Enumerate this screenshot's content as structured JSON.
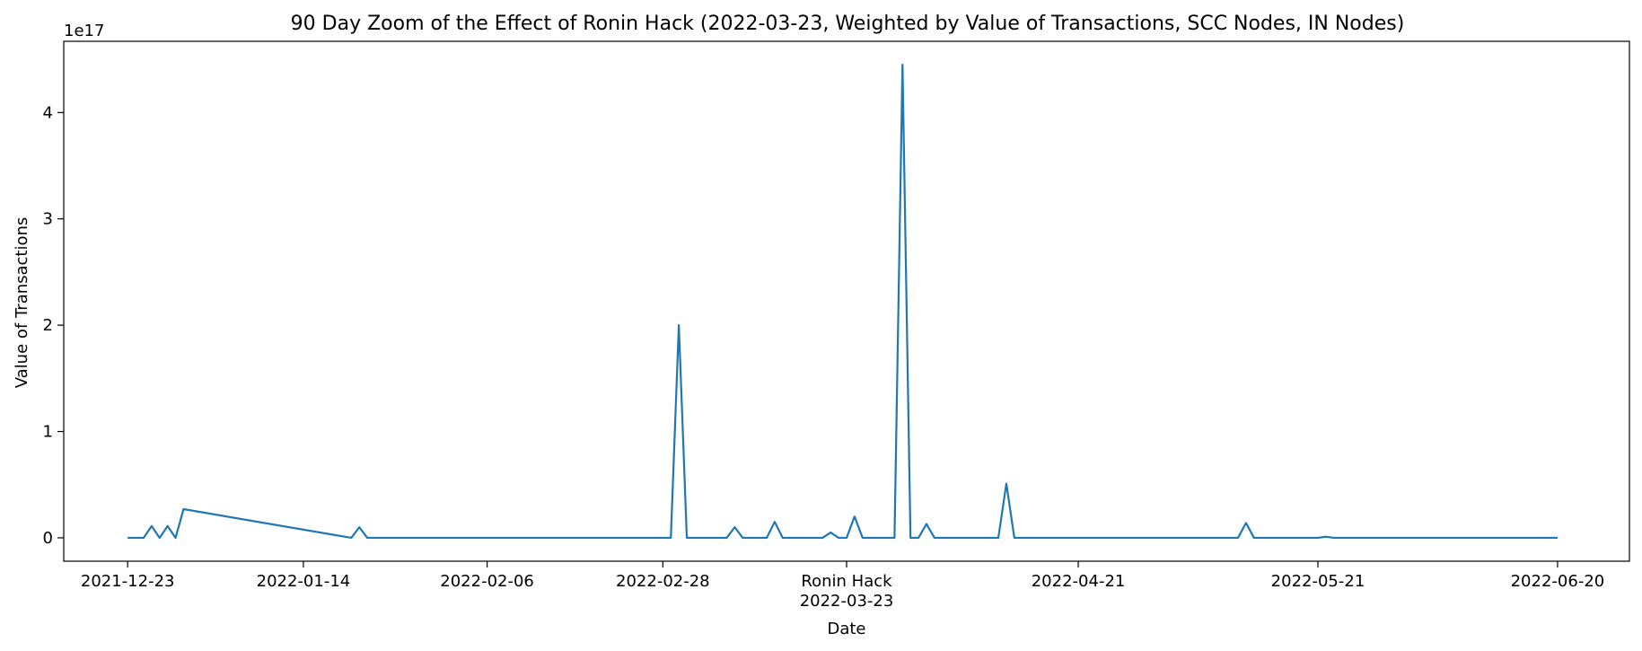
{
  "chart_data": {
    "type": "line",
    "title": "90 Day Zoom of the Effect of Ronin Hack (2022-03-23, Weighted by Value of Transactions, SCC Nodes, IN Nodes)",
    "xlabel": "Date",
    "ylabel": "Value of Transactions",
    "y_offset_label": "1e17",
    "x_scale": "date",
    "xlim": [
      "2021-12-15",
      "2022-06-29"
    ],
    "ylim": [
      -2.2e+16,
      4.67e+17
    ],
    "x_ticks": [
      {
        "date": "2021-12-23",
        "label": "2021-12-23"
      },
      {
        "date": "2022-01-14",
        "label": "2022-01-14"
      },
      {
        "date": "2022-02-06",
        "label": "2022-02-06"
      },
      {
        "date": "2022-02-28",
        "label": "2022-02-28"
      },
      {
        "date": "2022-03-23",
        "label": "Ronin Hack",
        "label2": "2022-03-23"
      },
      {
        "date": "2022-04-21",
        "label": "2022-04-21"
      },
      {
        "date": "2022-05-21",
        "label": "2022-05-21"
      },
      {
        "date": "2022-06-20",
        "label": "2022-06-20"
      }
    ],
    "y_ticks": [
      {
        "value": 0,
        "label": "0"
      },
      {
        "value": 1e+17,
        "label": "1"
      },
      {
        "value": 2e+17,
        "label": "2"
      },
      {
        "value": 3e+17,
        "label": "3"
      },
      {
        "value": 4e+17,
        "label": "4"
      }
    ],
    "series": [
      {
        "color": "#1f77b4",
        "x": [
          "2021-12-23",
          "2021-12-25",
          "2021-12-26",
          "2021-12-27",
          "2021-12-28",
          "2021-12-29",
          "2021-12-30",
          "2022-01-20",
          "2022-01-21",
          "2022-01-22",
          "2022-03-01",
          "2022-03-02",
          "2022-03-03",
          "2022-03-08",
          "2022-03-09",
          "2022-03-10",
          "2022-03-13",
          "2022-03-14",
          "2022-03-15",
          "2022-03-20",
          "2022-03-21",
          "2022-03-22",
          "2022-03-23",
          "2022-03-24",
          "2022-03-25",
          "2022-03-26",
          "2022-03-29",
          "2022-03-30",
          "2022-03-31",
          "2022-04-01",
          "2022-04-02",
          "2022-04-03",
          "2022-04-11",
          "2022-04-12",
          "2022-04-13",
          "2022-05-11",
          "2022-05-12",
          "2022-05-13",
          "2022-05-21",
          "2022-05-22",
          "2022-05-23",
          "2022-06-20"
        ],
        "values": [
          0,
          0,
          1.1e+16,
          0,
          1.1e+16,
          0,
          2.7e+16,
          0,
          1e+16,
          0,
          0,
          2e+17,
          0,
          0,
          1e+16,
          0,
          0,
          1.5e+16,
          0,
          0,
          5000000000000000.0,
          0,
          0,
          2e+16,
          0,
          0,
          0,
          4.45e+17,
          0,
          0,
          1.3e+16,
          0,
          0,
          5.1e+16,
          0,
          0,
          1.4e+16,
          0,
          0,
          1000000000000000.0,
          0,
          0
        ]
      }
    ]
  }
}
